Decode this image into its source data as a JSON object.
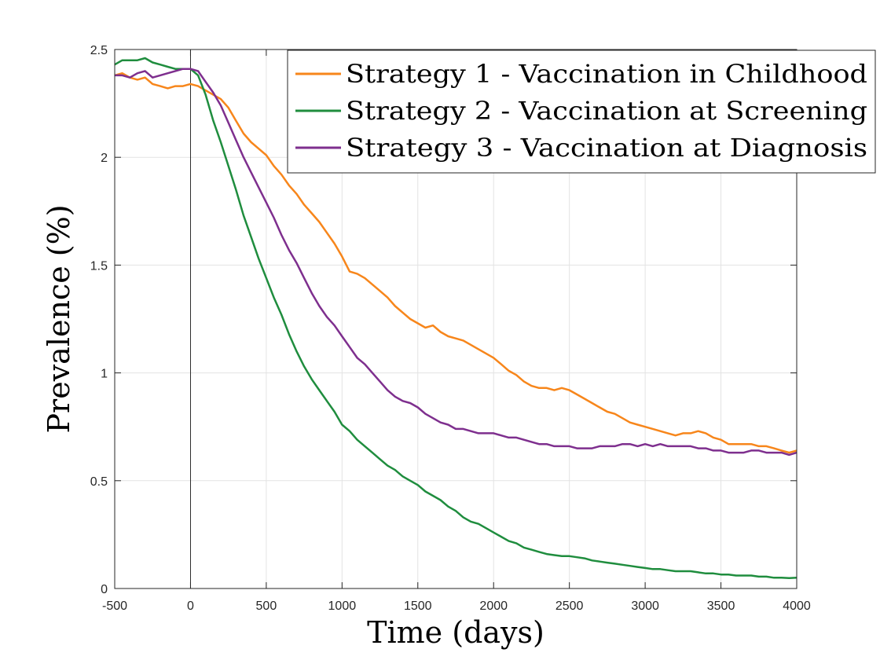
{
  "chart_data": {
    "type": "line",
    "title": "",
    "xlabel": "Time (days)",
    "ylabel": "Prevalence (%)",
    "xlim": [
      -500,
      4000
    ],
    "ylim": [
      0,
      2.5
    ],
    "xticks": [
      -500,
      0,
      500,
      1000,
      1500,
      2000,
      2500,
      3000,
      3500,
      4000
    ],
    "xtick_labels": [
      "-500",
      "0",
      "500",
      "1000",
      "1500",
      "2000",
      "2500",
      "3000",
      "3500",
      "4000"
    ],
    "yticks": [
      0,
      0.5,
      1,
      1.5,
      2,
      2.5
    ],
    "ytick_labels": [
      "0",
      "0.5",
      "1",
      "1.5",
      "2",
      "2.5"
    ],
    "grid": true,
    "legend_position": "top-right",
    "vertical_reference_line_x": 0,
    "series": [
      {
        "name": "Strategy 1 - Vaccination in Childhood",
        "color": "#F7861B",
        "points": [
          [
            -500,
            2.38
          ],
          [
            -450,
            2.39
          ],
          [
            -400,
            2.37
          ],
          [
            -350,
            2.36
          ],
          [
            -300,
            2.37
          ],
          [
            -250,
            2.34
          ],
          [
            -200,
            2.33
          ],
          [
            -150,
            2.32
          ],
          [
            -100,
            2.33
          ],
          [
            -50,
            2.33
          ],
          [
            0,
            2.34
          ],
          [
            50,
            2.33
          ],
          [
            100,
            2.31
          ],
          [
            150,
            2.29
          ],
          [
            200,
            2.27
          ],
          [
            250,
            2.23
          ],
          [
            300,
            2.17
          ],
          [
            350,
            2.11
          ],
          [
            400,
            2.07
          ],
          [
            450,
            2.04
          ],
          [
            500,
            2.01
          ],
          [
            550,
            1.96
          ],
          [
            600,
            1.92
          ],
          [
            650,
            1.87
          ],
          [
            700,
            1.83
          ],
          [
            750,
            1.78
          ],
          [
            800,
            1.74
          ],
          [
            850,
            1.7
          ],
          [
            900,
            1.65
          ],
          [
            950,
            1.6
          ],
          [
            1000,
            1.54
          ],
          [
            1050,
            1.47
          ],
          [
            1100,
            1.46
          ],
          [
            1150,
            1.44
          ],
          [
            1200,
            1.41
          ],
          [
            1250,
            1.38
          ],
          [
            1300,
            1.35
          ],
          [
            1350,
            1.31
          ],
          [
            1400,
            1.28
          ],
          [
            1450,
            1.25
          ],
          [
            1500,
            1.23
          ],
          [
            1550,
            1.21
          ],
          [
            1600,
            1.22
          ],
          [
            1650,
            1.19
          ],
          [
            1700,
            1.17
          ],
          [
            1750,
            1.16
          ],
          [
            1800,
            1.15
          ],
          [
            1850,
            1.13
          ],
          [
            1900,
            1.11
          ],
          [
            1950,
            1.09
          ],
          [
            2000,
            1.07
          ],
          [
            2050,
            1.04
          ],
          [
            2100,
            1.01
          ],
          [
            2150,
            0.99
          ],
          [
            2200,
            0.96
          ],
          [
            2250,
            0.94
          ],
          [
            2300,
            0.93
          ],
          [
            2350,
            0.93
          ],
          [
            2400,
            0.92
          ],
          [
            2450,
            0.93
          ],
          [
            2500,
            0.92
          ],
          [
            2550,
            0.9
          ],
          [
            2600,
            0.88
          ],
          [
            2650,
            0.86
          ],
          [
            2700,
            0.84
          ],
          [
            2750,
            0.82
          ],
          [
            2800,
            0.81
          ],
          [
            2850,
            0.79
          ],
          [
            2900,
            0.77
          ],
          [
            2950,
            0.76
          ],
          [
            3000,
            0.75
          ],
          [
            3050,
            0.74
          ],
          [
            3100,
            0.73
          ],
          [
            3150,
            0.72
          ],
          [
            3200,
            0.71
          ],
          [
            3250,
            0.72
          ],
          [
            3300,
            0.72
          ],
          [
            3350,
            0.73
          ],
          [
            3400,
            0.72
          ],
          [
            3450,
            0.7
          ],
          [
            3500,
            0.69
          ],
          [
            3550,
            0.67
          ],
          [
            3600,
            0.67
          ],
          [
            3650,
            0.67
          ],
          [
            3700,
            0.67
          ],
          [
            3750,
            0.66
          ],
          [
            3800,
            0.66
          ],
          [
            3850,
            0.65
          ],
          [
            3900,
            0.64
          ],
          [
            3950,
            0.63
          ],
          [
            4000,
            0.64
          ]
        ]
      },
      {
        "name": "Strategy 2 - Vaccination at Screening",
        "color": "#1F8D3E",
        "points": [
          [
            -500,
            2.43
          ],
          [
            -450,
            2.45
          ],
          [
            -400,
            2.45
          ],
          [
            -350,
            2.45
          ],
          [
            -300,
            2.46
          ],
          [
            -250,
            2.44
          ],
          [
            -200,
            2.43
          ],
          [
            -150,
            2.42
          ],
          [
            -100,
            2.41
          ],
          [
            -50,
            2.41
          ],
          [
            0,
            2.41
          ],
          [
            50,
            2.38
          ],
          [
            100,
            2.29
          ],
          [
            150,
            2.17
          ],
          [
            200,
            2.07
          ],
          [
            250,
            1.96
          ],
          [
            300,
            1.85
          ],
          [
            350,
            1.73
          ],
          [
            400,
            1.63
          ],
          [
            450,
            1.53
          ],
          [
            500,
            1.44
          ],
          [
            550,
            1.35
          ],
          [
            600,
            1.27
          ],
          [
            650,
            1.18
          ],
          [
            700,
            1.1
          ],
          [
            750,
            1.03
          ],
          [
            800,
            0.97
          ],
          [
            850,
            0.92
          ],
          [
            900,
            0.87
          ],
          [
            950,
            0.82
          ],
          [
            1000,
            0.76
          ],
          [
            1050,
            0.73
          ],
          [
            1100,
            0.69
          ],
          [
            1150,
            0.66
          ],
          [
            1200,
            0.63
          ],
          [
            1250,
            0.6
          ],
          [
            1300,
            0.57
          ],
          [
            1350,
            0.55
          ],
          [
            1400,
            0.52
          ],
          [
            1450,
            0.5
          ],
          [
            1500,
            0.48
          ],
          [
            1550,
            0.45
          ],
          [
            1600,
            0.43
          ],
          [
            1650,
            0.41
          ],
          [
            1700,
            0.38
          ],
          [
            1750,
            0.36
          ],
          [
            1800,
            0.33
          ],
          [
            1850,
            0.31
          ],
          [
            1900,
            0.3
          ],
          [
            1950,
            0.28
          ],
          [
            2000,
            0.26
          ],
          [
            2050,
            0.24
          ],
          [
            2100,
            0.22
          ],
          [
            2150,
            0.21
          ],
          [
            2200,
            0.19
          ],
          [
            2250,
            0.18
          ],
          [
            2300,
            0.17
          ],
          [
            2350,
            0.16
          ],
          [
            2400,
            0.155
          ],
          [
            2450,
            0.15
          ],
          [
            2500,
            0.15
          ],
          [
            2550,
            0.145
          ],
          [
            2600,
            0.14
          ],
          [
            2650,
            0.13
          ],
          [
            2700,
            0.125
          ],
          [
            2750,
            0.12
          ],
          [
            2800,
            0.115
          ],
          [
            2850,
            0.11
          ],
          [
            2900,
            0.105
          ],
          [
            2950,
            0.1
          ],
          [
            3000,
            0.095
          ],
          [
            3050,
            0.09
          ],
          [
            3100,
            0.09
          ],
          [
            3150,
            0.085
          ],
          [
            3200,
            0.08
          ],
          [
            3250,
            0.08
          ],
          [
            3300,
            0.08
          ],
          [
            3350,
            0.075
          ],
          [
            3400,
            0.07
          ],
          [
            3450,
            0.07
          ],
          [
            3500,
            0.065
          ],
          [
            3550,
            0.065
          ],
          [
            3600,
            0.06
          ],
          [
            3650,
            0.06
          ],
          [
            3700,
            0.06
          ],
          [
            3750,
            0.055
          ],
          [
            3800,
            0.055
          ],
          [
            3850,
            0.05
          ],
          [
            3900,
            0.05
          ],
          [
            3950,
            0.048
          ],
          [
            4000,
            0.05
          ]
        ]
      },
      {
        "name": "Strategy 3 - Vaccination at Diagnosis",
        "color": "#7E2F8E",
        "points": [
          [
            -500,
            2.38
          ],
          [
            -450,
            2.38
          ],
          [
            -400,
            2.37
          ],
          [
            -350,
            2.39
          ],
          [
            -300,
            2.4
          ],
          [
            -250,
            2.37
          ],
          [
            -200,
            2.38
          ],
          [
            -150,
            2.39
          ],
          [
            -100,
            2.4
          ],
          [
            -50,
            2.41
          ],
          [
            0,
            2.41
          ],
          [
            50,
            2.4
          ],
          [
            100,
            2.35
          ],
          [
            150,
            2.3
          ],
          [
            200,
            2.24
          ],
          [
            250,
            2.16
          ],
          [
            300,
            2.08
          ],
          [
            350,
            2.0
          ],
          [
            400,
            1.93
          ],
          [
            450,
            1.86
          ],
          [
            500,
            1.79
          ],
          [
            550,
            1.72
          ],
          [
            600,
            1.64
          ],
          [
            650,
            1.57
          ],
          [
            700,
            1.51
          ],
          [
            750,
            1.44
          ],
          [
            800,
            1.37
          ],
          [
            850,
            1.31
          ],
          [
            900,
            1.26
          ],
          [
            950,
            1.22
          ],
          [
            1000,
            1.17
          ],
          [
            1050,
            1.12
          ],
          [
            1100,
            1.07
          ],
          [
            1150,
            1.04
          ],
          [
            1200,
            1.0
          ],
          [
            1250,
            0.96
          ],
          [
            1300,
            0.92
          ],
          [
            1350,
            0.89
          ],
          [
            1400,
            0.87
          ],
          [
            1450,
            0.86
          ],
          [
            1500,
            0.84
          ],
          [
            1550,
            0.81
          ],
          [
            1600,
            0.79
          ],
          [
            1650,
            0.77
          ],
          [
            1700,
            0.76
          ],
          [
            1750,
            0.74
          ],
          [
            1800,
            0.74
          ],
          [
            1850,
            0.73
          ],
          [
            1900,
            0.72
          ],
          [
            1950,
            0.72
          ],
          [
            2000,
            0.72
          ],
          [
            2050,
            0.71
          ],
          [
            2100,
            0.7
          ],
          [
            2150,
            0.7
          ],
          [
            2200,
            0.69
          ],
          [
            2250,
            0.68
          ],
          [
            2300,
            0.67
          ],
          [
            2350,
            0.67
          ],
          [
            2400,
            0.66
          ],
          [
            2450,
            0.66
          ],
          [
            2500,
            0.66
          ],
          [
            2550,
            0.65
          ],
          [
            2600,
            0.65
          ],
          [
            2650,
            0.65
          ],
          [
            2700,
            0.66
          ],
          [
            2750,
            0.66
          ],
          [
            2800,
            0.66
          ],
          [
            2850,
            0.67
          ],
          [
            2900,
            0.67
          ],
          [
            2950,
            0.66
          ],
          [
            3000,
            0.67
          ],
          [
            3050,
            0.66
          ],
          [
            3100,
            0.67
          ],
          [
            3150,
            0.66
          ],
          [
            3200,
            0.66
          ],
          [
            3250,
            0.66
          ],
          [
            3300,
            0.66
          ],
          [
            3350,
            0.65
          ],
          [
            3400,
            0.65
          ],
          [
            3450,
            0.64
          ],
          [
            3500,
            0.64
          ],
          [
            3550,
            0.63
          ],
          [
            3600,
            0.63
          ],
          [
            3650,
            0.63
          ],
          [
            3700,
            0.64
          ],
          [
            3750,
            0.64
          ],
          [
            3800,
            0.63
          ],
          [
            3850,
            0.63
          ],
          [
            3900,
            0.63
          ],
          [
            3950,
            0.62
          ],
          [
            4000,
            0.63
          ]
        ]
      }
    ]
  }
}
